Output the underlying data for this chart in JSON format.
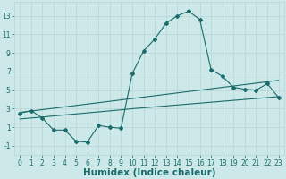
{
  "xlabel": "Humidex (Indice chaleur)",
  "bg_color": "#cce8e8",
  "grid_color": "#b8d4d4",
  "line_color": "#1a6b6b",
  "x_data": [
    0,
    1,
    2,
    3,
    4,
    5,
    6,
    7,
    8,
    9,
    10,
    11,
    12,
    13,
    14,
    15,
    16,
    17,
    18,
    19,
    20,
    21,
    22,
    23
  ],
  "y_main": [
    2.5,
    2.8,
    2.0,
    0.7,
    0.7,
    -0.5,
    -0.6,
    1.2,
    1.0,
    0.9,
    6.8,
    9.2,
    10.5,
    12.2,
    13.0,
    13.5,
    12.6,
    7.2,
    6.5,
    5.3,
    5.1,
    5.0,
    5.7,
    4.2
  ],
  "y_upper": [
    2.6,
    2.75,
    2.9,
    3.05,
    3.2,
    3.35,
    3.5,
    3.65,
    3.8,
    3.95,
    4.1,
    4.25,
    4.4,
    4.55,
    4.7,
    4.85,
    5.0,
    5.15,
    5.3,
    5.45,
    5.6,
    5.75,
    5.9,
    6.05
  ],
  "y_lower": [
    1.9,
    2.0,
    2.1,
    2.22,
    2.33,
    2.44,
    2.55,
    2.66,
    2.77,
    2.88,
    3.0,
    3.1,
    3.2,
    3.3,
    3.4,
    3.5,
    3.6,
    3.7,
    3.8,
    3.9,
    4.0,
    4.1,
    4.2,
    4.3
  ],
  "ylim": [
    -2.0,
    14.5
  ],
  "xlim": [
    -0.5,
    23.5
  ],
  "yticks": [
    -1,
    1,
    3,
    5,
    7,
    9,
    11,
    13
  ],
  "xticks": [
    0,
    1,
    2,
    3,
    4,
    5,
    6,
    7,
    8,
    9,
    10,
    11,
    12,
    13,
    14,
    15,
    16,
    17,
    18,
    19,
    20,
    21,
    22,
    23
  ],
  "figsize": [
    3.2,
    2.0
  ],
  "dpi": 100,
  "tick_fontsize": 5.5,
  "label_fontsize": 7.5
}
